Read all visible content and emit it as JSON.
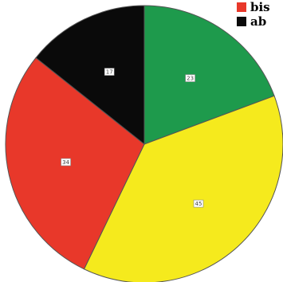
{
  "chart_data": {
    "type": "pie",
    "start_angle_deg": 0,
    "direction": "clockwise",
    "slices": [
      {
        "label": "23",
        "value": 23,
        "color": "#1e9a4c"
      },
      {
        "label": "45",
        "value": 45,
        "color": "#f5ea1d"
      },
      {
        "label": "34",
        "value": 34,
        "color": "#e8382a"
      },
      {
        "label": "17",
        "value": 17,
        "color": "#0a0a0a"
      }
    ],
    "legend": {
      "placement": "top-right",
      "entries": [
        {
          "label": "bis",
          "color": "#e8382a"
        },
        {
          "label": "ab",
          "color": "#0a0a0a"
        }
      ]
    }
  }
}
